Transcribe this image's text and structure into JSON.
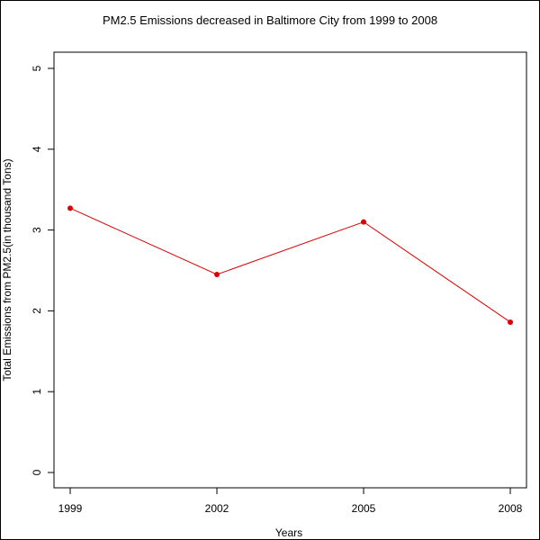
{
  "chart_data": {
    "type": "line",
    "title": "PM2.5 Emissions decreased in Baltimore City from 1999 to 2008",
    "xlabel": "Years",
    "ylabel": "Total Emissions from PM2.5(in thousand Tons)",
    "x": [
      "1999",
      "2002",
      "2005",
      "2008"
    ],
    "series": [
      {
        "values": [
          3.27,
          2.45,
          3.1,
          1.86
        ],
        "color": "#dd0000"
      }
    ],
    "yticks": [
      0,
      1,
      2,
      3,
      4,
      5
    ],
    "ylim": [
      0,
      5
    ],
    "grid": false,
    "legend": "none"
  }
}
